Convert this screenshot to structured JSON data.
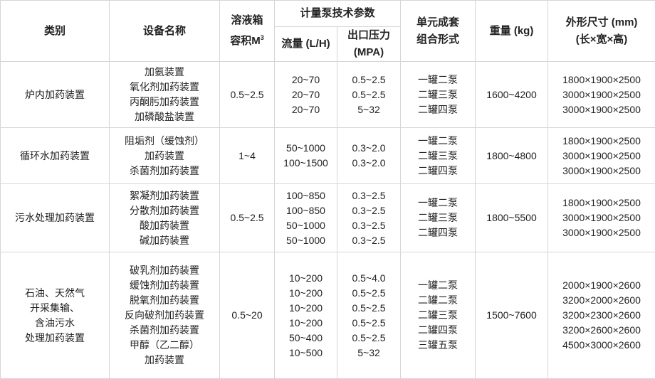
{
  "headers": {
    "category": "类别",
    "device_name": "设备名称",
    "tank_volume": "溶液箱\n容积M",
    "tank_volume_sup": "3",
    "pump_params": "计量泵技术参数",
    "flow": "流量 (L/H)",
    "pressure": "出口压力\n(MPA)",
    "combo": "单元成套\n组合形式",
    "weight": "重量 (kg)",
    "dimensions": "外形尺寸 (mm)\n(长×宽×高)"
  },
  "rows": [
    {
      "category": "炉内加药装置",
      "devices": "加氨装置\n氧化剂加药装置\n丙酮肟加药装置\n加磷酸盐装置",
      "volume": "0.5~2.5",
      "flow": "20~70\n20~70\n20~70",
      "pressure": "0.5~2.5\n0.5~2.5\n5~32",
      "combo": "一罐二泵\n二罐三泵\n二罐四泵",
      "weight": "1600~4200",
      "dimensions": "1800×1900×2500\n3000×1900×2500\n3000×1900×2500"
    },
    {
      "category": "循环水加药装置",
      "devices": "阻垢剂（缓蚀剂）\n加药装置\n杀菌剂加药装置",
      "volume": "1~4",
      "flow": "50~1000\n100~1500",
      "pressure": "0.3~2.0\n0.3~2.0",
      "combo": "一罐二泵\n二罐三泵\n二罐四泵",
      "weight": "1800~4800",
      "dimensions": "1800×1900×2500\n3000×1900×2500\n3000×1900×2500"
    },
    {
      "category": "污水处理加药装置",
      "devices": "絮凝剂加药装置\n分散剂加药装置\n酸加药装置\n碱加药装置",
      "volume": "0.5~2.5",
      "flow": "100~850\n100~850\n50~1000\n50~1000",
      "pressure": "0.3~2.5\n0.3~2.5\n0.3~2.5\n0.3~2.5",
      "combo": "一罐二泵\n二罐三泵\n二罐四泵",
      "weight": "1800~5500",
      "dimensions": "1800×1900×2500\n3000×1900×2500\n3000×1900×2500"
    },
    {
      "category": "石油、天然气\n开采集输、\n含油污水\n处理加药装置",
      "devices": "破乳剂加药装置\n缓蚀剂加药装置\n脱氧剂加药装置\n反向破剂加药装置\n杀菌剂加药装置\n甲醇（乙二醇）\n加药装置",
      "volume": "0.5~20",
      "flow": "10~200\n10~200\n10~200\n10~200\n50~400\n10~500",
      "pressure": "0.5~4.0\n0.5~2.5\n0.5~2.5\n0.5~2.5\n0.5~2.5\n5~32",
      "combo": "一罐二泵\n二罐二泵\n二罐三泵\n二罐四泵\n三罐五泵",
      "weight": "1500~7600",
      "dimensions": "2000×1900×2600\n3200×2000×2600\n3200×2300×2600\n3200×2600×2600\n4500×3000×2600"
    }
  ]
}
